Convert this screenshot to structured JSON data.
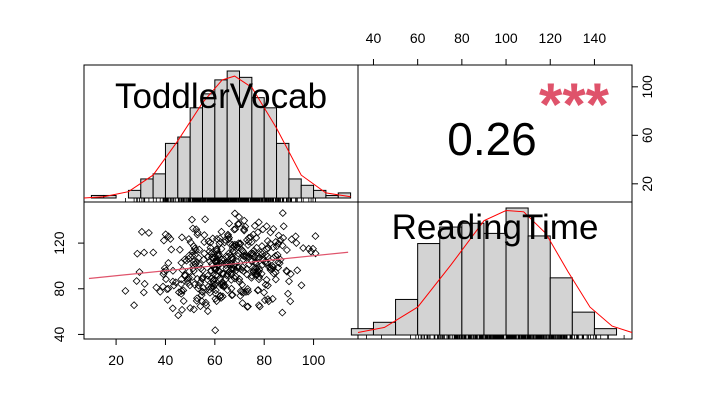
{
  "chart_data": {
    "type": "pairs",
    "variables": [
      "ToddlerVocab",
      "ReadingTime"
    ],
    "correlation": {
      "value": 0.26,
      "display": "0.26",
      "significance": "***",
      "color": "#df536b"
    },
    "axes": {
      "ToddlerVocab": {
        "range": [
          7,
          118
        ],
        "ticks": [
          20,
          40,
          60,
          80,
          100
        ]
      },
      "ReadingTime": {
        "range": [
          33,
          157
        ],
        "ticks": [
          40,
          60,
          80,
          100,
          120,
          140
        ]
      },
      "upper_right_y": {
        "range": [
          5,
          118
        ],
        "ticks": [
          20,
          60,
          100
        ]
      },
      "left_y": {
        "range": [
          36,
          156
        ],
        "ticks": [
          40,
          80,
          120
        ]
      }
    },
    "histograms": {
      "ToddlerVocab": {
        "bin_edges": [
          10,
          15,
          20,
          25,
          30,
          35,
          40,
          45,
          50,
          55,
          60,
          65,
          70,
          75,
          80,
          85,
          90,
          95,
          100,
          105,
          110,
          115
        ],
        "relative_heights": [
          0.02,
          0.02,
          0.0,
          0.06,
          0.15,
          0.19,
          0.43,
          0.48,
          0.71,
          0.82,
          0.93,
          1.0,
          0.95,
          0.79,
          0.71,
          0.43,
          0.15,
          0.1,
          0.06,
          0.02,
          0.04
        ],
        "density_curve": [
          [
            7,
            0.0
          ],
          [
            15,
            0.01
          ],
          [
            25,
            0.05
          ],
          [
            35,
            0.18
          ],
          [
            45,
            0.45
          ],
          [
            55,
            0.75
          ],
          [
            63,
            0.93
          ],
          [
            68,
            0.96
          ],
          [
            75,
            0.87
          ],
          [
            85,
            0.55
          ],
          [
            95,
            0.18
          ],
          [
            105,
            0.04
          ],
          [
            115,
            0.01
          ]
        ]
      },
      "ReadingTime": {
        "bin_edges": [
          30,
          40,
          50,
          60,
          70,
          80,
          90,
          100,
          110,
          120,
          130,
          140,
          150,
          160
        ],
        "relative_heights": [
          0.05,
          0.1,
          0.28,
          0.72,
          0.85,
          0.88,
          0.8,
          1.0,
          0.78,
          0.45,
          0.18,
          0.05,
          0.0
        ],
        "density_curve": [
          [
            33,
            0.02
          ],
          [
            45,
            0.06
          ],
          [
            60,
            0.22
          ],
          [
            75,
            0.55
          ],
          [
            90,
            0.9
          ],
          [
            100,
            0.98
          ],
          [
            108,
            0.97
          ],
          [
            118,
            0.8
          ],
          [
            128,
            0.5
          ],
          [
            138,
            0.22
          ],
          [
            148,
            0.07
          ],
          [
            157,
            0.02
          ]
        ]
      }
    },
    "scatter": {
      "x_variable": "ToddlerVocab",
      "y_variable": "ReadingTime",
      "n_points": 400,
      "x_mean": 65,
      "x_sd": 15,
      "y_mean": 100,
      "y_sd": 20,
      "correlation": 0.26,
      "fit_line": [
        [
          9,
          89
        ],
        [
          114,
          112
        ]
      ],
      "fit_color": "#df536b"
    }
  }
}
